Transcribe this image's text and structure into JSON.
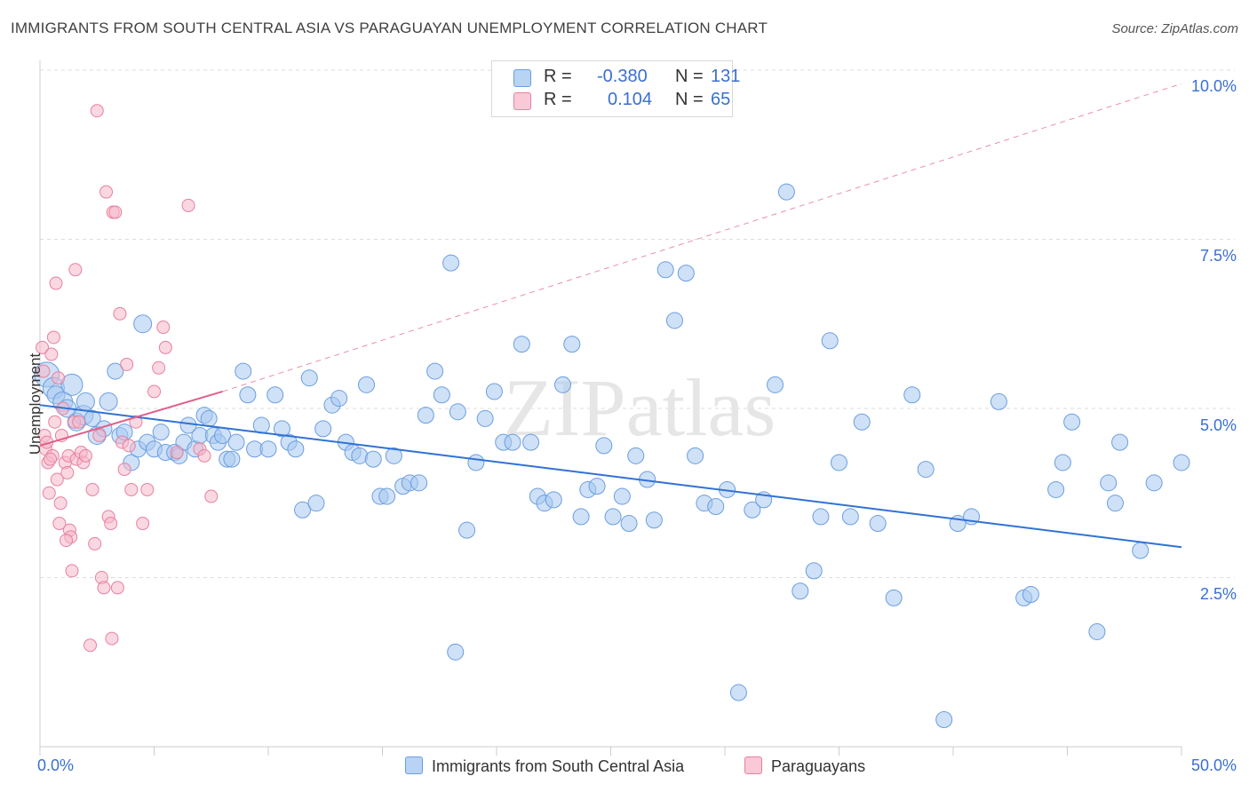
{
  "title": "IMMIGRANTS FROM SOUTH CENTRAL ASIA VS PARAGUAYAN UNEMPLOYMENT CORRELATION CHART",
  "source": "Source: ZipAtlas.com",
  "watermark": "ZIPatlas",
  "colors": {
    "blue_fill": "#a8c8f0",
    "blue_stroke": "#6a9ee0",
    "blue_line": "#2f72d6",
    "pink_fill": "#f5b8cb",
    "pink_stroke": "#e8809f",
    "pink_line": "#e06088",
    "axis_text": "#3a6fd1",
    "grid": "#dddddd"
  },
  "legend_top": {
    "rows": [
      {
        "r_label": "R =",
        "r_value": "-0.380",
        "n_label": "N =",
        "n_value": "131"
      },
      {
        "r_label": "R =",
        "r_value": "0.104",
        "n_label": "N =",
        "n_value": "65"
      }
    ]
  },
  "legend_bottom": {
    "series1": "Immigrants from South Central Asia",
    "series2": "Paraguayans"
  },
  "chart_data": {
    "type": "scatter",
    "ylabel": "Unemployment",
    "xlim": [
      0,
      50
    ],
    "ylim": [
      0,
      10.5
    ],
    "x_tick_labels": [
      "0.0%",
      "50.0%"
    ],
    "y_ticks": [
      2.5,
      5.0,
      7.5,
      10.0
    ],
    "y_tick_labels": [
      "2.5%",
      "5.0%",
      "7.5%",
      "10.0%"
    ],
    "grid": true,
    "series": [
      {
        "name": "Immigrants from South Central Asia",
        "trend": {
          "x": [
            0,
            50
          ],
          "y": [
            5.05,
            2.95
          ]
        },
        "points": [
          [
            0.3,
            5.5,
            14
          ],
          [
            0.6,
            5.3,
            12
          ],
          [
            0.7,
            5.2,
            10
          ],
          [
            1.0,
            5.1,
            11
          ],
          [
            1.2,
            5.0,
            10
          ],
          [
            1.4,
            5.35,
            12
          ],
          [
            1.6,
            4.8,
            10
          ],
          [
            1.9,
            4.9,
            11
          ],
          [
            2.0,
            5.1,
            10
          ],
          [
            2.3,
            4.85,
            9
          ],
          [
            2.5,
            4.6,
            10
          ],
          [
            2.8,
            4.7,
            9
          ],
          [
            3.0,
            5.1,
            10
          ],
          [
            3.3,
            5.55,
            9
          ],
          [
            3.5,
            4.6,
            9
          ],
          [
            3.7,
            4.65,
            9
          ],
          [
            4.0,
            4.2,
            9
          ],
          [
            4.3,
            4.4,
            9
          ],
          [
            4.5,
            6.25,
            10
          ],
          [
            4.7,
            4.5,
            9
          ],
          [
            5.0,
            4.4,
            9
          ],
          [
            5.3,
            4.65,
            9
          ],
          [
            5.5,
            4.35,
            9
          ],
          [
            5.9,
            4.35,
            9
          ],
          [
            6.1,
            4.3,
            9
          ],
          [
            6.3,
            4.5,
            9
          ],
          [
            6.5,
            4.75,
            9
          ],
          [
            6.8,
            4.4,
            9
          ],
          [
            7.0,
            4.6,
            9
          ],
          [
            7.2,
            4.9,
            9
          ],
          [
            7.4,
            4.85,
            9
          ],
          [
            7.6,
            4.6,
            9
          ],
          [
            7.8,
            4.5,
            9
          ],
          [
            8.0,
            4.6,
            9
          ],
          [
            8.2,
            4.25,
            9
          ],
          [
            8.4,
            4.25,
            9
          ],
          [
            8.6,
            4.5,
            9
          ],
          [
            8.9,
            5.55,
            9
          ],
          [
            9.1,
            5.2,
            9
          ],
          [
            9.4,
            4.4,
            9
          ],
          [
            9.7,
            4.75,
            9
          ],
          [
            10.0,
            4.4,
            9
          ],
          [
            10.3,
            5.2,
            9
          ],
          [
            10.6,
            4.7,
            9
          ],
          [
            10.9,
            4.5,
            9
          ],
          [
            11.2,
            4.4,
            9
          ],
          [
            11.5,
            3.5,
            9
          ],
          [
            11.8,
            5.45,
            9
          ],
          [
            12.1,
            3.6,
            9
          ],
          [
            12.4,
            4.7,
            9
          ],
          [
            12.8,
            5.05,
            9
          ],
          [
            13.1,
            5.15,
            9
          ],
          [
            13.4,
            4.5,
            9
          ],
          [
            13.7,
            4.35,
            9
          ],
          [
            14.0,
            4.3,
            9
          ],
          [
            14.3,
            5.35,
            9
          ],
          [
            14.6,
            4.25,
            9
          ],
          [
            14.9,
            3.7,
            9
          ],
          [
            15.2,
            3.7,
            9
          ],
          [
            15.5,
            4.3,
            9
          ],
          [
            15.9,
            3.85,
            9
          ],
          [
            16.2,
            3.9,
            9
          ],
          [
            16.6,
            3.9,
            9
          ],
          [
            16.9,
            4.9,
            9
          ],
          [
            17.3,
            5.55,
            9
          ],
          [
            17.6,
            5.2,
            9
          ],
          [
            18.0,
            7.15,
            9
          ],
          [
            18.3,
            4.95,
            9
          ],
          [
            18.7,
            3.2,
            9
          ],
          [
            19.1,
            4.2,
            9
          ],
          [
            19.5,
            4.85,
            9
          ],
          [
            19.9,
            5.25,
            9
          ],
          [
            20.3,
            4.5,
            9
          ],
          [
            20.7,
            4.5,
            9
          ],
          [
            21.1,
            5.95,
            9
          ],
          [
            21.5,
            4.5,
            9
          ],
          [
            21.8,
            3.7,
            9
          ],
          [
            22.1,
            3.6,
            9
          ],
          [
            22.5,
            3.65,
            9
          ],
          [
            22.9,
            5.35,
            9
          ],
          [
            23.3,
            5.95,
            9
          ],
          [
            23.7,
            3.4,
            9
          ],
          [
            24.0,
            3.8,
            9
          ],
          [
            24.4,
            3.85,
            9
          ],
          [
            24.7,
            4.45,
            9
          ],
          [
            25.1,
            3.4,
            9
          ],
          [
            25.5,
            3.7,
            9
          ],
          [
            25.8,
            3.3,
            9
          ],
          [
            26.1,
            4.3,
            9
          ],
          [
            26.6,
            3.95,
            9
          ],
          [
            26.9,
            3.35,
            9
          ],
          [
            27.4,
            7.05,
            9
          ],
          [
            27.8,
            6.3,
            9
          ],
          [
            28.3,
            7.0,
            9
          ],
          [
            28.7,
            4.3,
            9
          ],
          [
            29.1,
            3.6,
            9
          ],
          [
            29.6,
            3.55,
            9
          ],
          [
            30.1,
            3.8,
            9
          ],
          [
            30.6,
            0.8,
            9
          ],
          [
            31.2,
            3.5,
            9
          ],
          [
            31.7,
            3.65,
            9
          ],
          [
            32.2,
            5.35,
            9
          ],
          [
            32.7,
            8.2,
            9
          ],
          [
            33.3,
            2.3,
            9
          ],
          [
            33.9,
            2.6,
            9
          ],
          [
            34.2,
            3.4,
            9
          ],
          [
            34.6,
            6.0,
            9
          ],
          [
            35.0,
            4.2,
            9
          ],
          [
            35.5,
            3.4,
            9
          ],
          [
            36.0,
            4.8,
            9
          ],
          [
            36.7,
            3.3,
            9
          ],
          [
            37.4,
            2.2,
            9
          ],
          [
            38.2,
            5.2,
            9
          ],
          [
            38.8,
            4.1,
            9
          ],
          [
            39.6,
            0.4,
            9
          ],
          [
            40.2,
            3.3,
            9
          ],
          [
            40.8,
            3.4,
            9
          ],
          [
            42.0,
            5.1,
            9
          ],
          [
            43.1,
            2.2,
            9
          ],
          [
            43.4,
            2.25,
            9
          ],
          [
            44.5,
            3.8,
            9
          ],
          [
            44.8,
            4.2,
            9
          ],
          [
            45.2,
            4.8,
            9
          ],
          [
            46.3,
            1.7,
            9
          ],
          [
            46.8,
            3.9,
            9
          ],
          [
            47.1,
            3.6,
            9
          ],
          [
            47.3,
            4.5,
            9
          ],
          [
            48.2,
            2.9,
            9
          ],
          [
            48.8,
            3.9,
            9
          ],
          [
            50.0,
            4.2,
            9
          ],
          [
            18.2,
            1.4,
            9
          ]
        ]
      },
      {
        "name": "Paraguayans",
        "trend": {
          "x": [
            0,
            8
          ],
          "y": [
            4.45,
            5.25
          ]
        },
        "trend_dashed": {
          "x": [
            8,
            50
          ],
          "y": [
            5.25,
            9.8
          ]
        },
        "points": [
          [
            0.1,
            5.9,
            7
          ],
          [
            0.2,
            4.6,
            7
          ],
          [
            0.25,
            4.4,
            7
          ],
          [
            0.3,
            4.5,
            7
          ],
          [
            0.35,
            4.2,
            7
          ],
          [
            0.4,
            3.75,
            7
          ],
          [
            0.5,
            5.8,
            7
          ],
          [
            0.55,
            4.3,
            7
          ],
          [
            0.6,
            6.05,
            7
          ],
          [
            0.7,
            6.85,
            7
          ],
          [
            0.8,
            5.45,
            7
          ],
          [
            0.85,
            3.3,
            7
          ],
          [
            0.9,
            3.6,
            7
          ],
          [
            1.0,
            5.0,
            7
          ],
          [
            1.1,
            4.2,
            7
          ],
          [
            1.2,
            4.05,
            7
          ],
          [
            1.25,
            4.3,
            7
          ],
          [
            1.3,
            3.2,
            7
          ],
          [
            1.35,
            3.1,
            7
          ],
          [
            1.4,
            2.6,
            7
          ],
          [
            1.5,
            4.8,
            7
          ],
          [
            1.55,
            7.05,
            7
          ],
          [
            1.6,
            4.25,
            7
          ],
          [
            1.7,
            4.8,
            7
          ],
          [
            1.8,
            4.35,
            7
          ],
          [
            1.9,
            4.2,
            7
          ],
          [
            2.0,
            4.3,
            7
          ],
          [
            2.2,
            1.5,
            7
          ],
          [
            2.3,
            3.8,
            7
          ],
          [
            2.4,
            3.0,
            7
          ],
          [
            2.5,
            9.4,
            7
          ],
          [
            2.6,
            4.6,
            7
          ],
          [
            2.7,
            2.5,
            7
          ],
          [
            2.8,
            2.35,
            7
          ],
          [
            2.9,
            8.2,
            7
          ],
          [
            3.0,
            3.4,
            7
          ],
          [
            3.1,
            3.3,
            7
          ],
          [
            3.15,
            1.6,
            7
          ],
          [
            3.2,
            7.9,
            7
          ],
          [
            3.3,
            7.9,
            7
          ],
          [
            3.4,
            2.35,
            7
          ],
          [
            3.5,
            6.4,
            7
          ],
          [
            3.6,
            4.5,
            7
          ],
          [
            3.7,
            4.1,
            7
          ],
          [
            3.8,
            5.65,
            7
          ],
          [
            3.9,
            4.45,
            7
          ],
          [
            4.0,
            3.8,
            7
          ],
          [
            4.2,
            4.8,
            7
          ],
          [
            4.5,
            3.3,
            7
          ],
          [
            4.7,
            3.8,
            7
          ],
          [
            5.0,
            5.25,
            7
          ],
          [
            5.2,
            5.6,
            7
          ],
          [
            5.4,
            6.2,
            7
          ],
          [
            5.5,
            5.9,
            7
          ],
          [
            6.0,
            4.35,
            7
          ],
          [
            6.5,
            8.0,
            7
          ],
          [
            7.0,
            4.4,
            7
          ],
          [
            7.2,
            4.3,
            7
          ],
          [
            7.5,
            3.7,
            7
          ],
          [
            0.15,
            5.55,
            7
          ],
          [
            0.45,
            4.25,
            7
          ],
          [
            0.65,
            4.8,
            7
          ],
          [
            0.75,
            3.95,
            7
          ],
          [
            0.95,
            4.6,
            7
          ],
          [
            1.15,
            3.05,
            7
          ]
        ]
      }
    ]
  }
}
